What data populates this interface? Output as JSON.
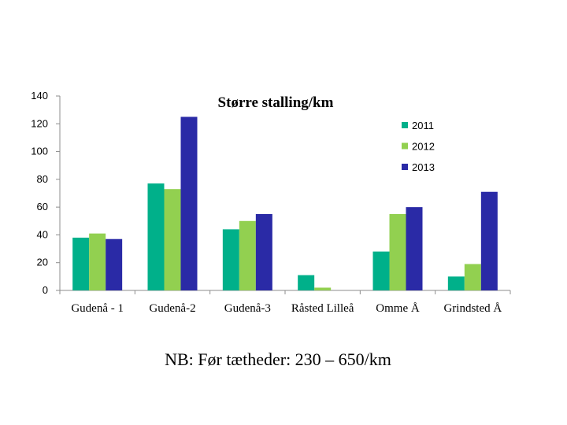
{
  "chart_data": {
    "type": "bar",
    "title": "Større stalling/km",
    "categories": [
      "Gudenå - 1",
      "Gudenå-2",
      "Gudenå-3",
      "Råsted Lilleå",
      "Omme Å",
      "Grindsted Å"
    ],
    "series": [
      {
        "name": "2011",
        "color": "#00b08a",
        "values": [
          38,
          77,
          44,
          11,
          28,
          10
        ]
      },
      {
        "name": "2012",
        "color": "#92d050",
        "values": [
          41,
          73,
          50,
          2,
          55,
          19
        ]
      },
      {
        "name": "2013",
        "color": "#2a2aa6",
        "values": [
          37,
          125,
          55,
          0,
          60,
          71
        ]
      }
    ],
    "yticks": [
      0,
      20,
      40,
      60,
      80,
      100,
      120,
      140
    ],
    "ylim": [
      0,
      140
    ],
    "grid": false,
    "legend_position": "right"
  },
  "note": "NB: Før tætheder: 230 – 650/km"
}
